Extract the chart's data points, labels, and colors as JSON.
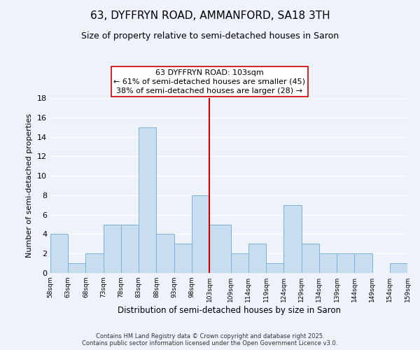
{
  "title": "63, DYFFRYN ROAD, AMMANFORD, SA18 3TH",
  "subtitle": "Size of property relative to semi-detached houses in Saron",
  "xlabel": "Distribution of semi-detached houses by size in Saron",
  "ylabel": "Number of semi-detached properties",
  "bin_edges": [
    58,
    63,
    68,
    73,
    78,
    83,
    88,
    93,
    98,
    103,
    109,
    114,
    119,
    124,
    129,
    134,
    139,
    144,
    149,
    154,
    159
  ],
  "counts": [
    4,
    1,
    2,
    5,
    5,
    15,
    4,
    3,
    8,
    5,
    2,
    3,
    1,
    7,
    3,
    2,
    2,
    2,
    0,
    1
  ],
  "bar_color": "#c9ddf0",
  "bar_edge_color": "#7ab4d8",
  "vline_x": 103,
  "vline_color": "#cc0000",
  "annotation_line1": "63 DYFFRYN ROAD: 103sqm",
  "annotation_line2": "← 61% of semi-detached houses are smaller (45)",
  "annotation_line3": "38% of semi-detached houses are larger (28) →",
  "annotation_fontsize": 8,
  "ylim": [
    0,
    18
  ],
  "yticks": [
    0,
    2,
    4,
    6,
    8,
    10,
    12,
    14,
    16,
    18
  ],
  "tick_labels": [
    "58sqm",
    "63sqm",
    "68sqm",
    "73sqm",
    "78sqm",
    "83sqm",
    "88sqm",
    "93sqm",
    "98sqm",
    "103sqm",
    "109sqm",
    "114sqm",
    "119sqm",
    "124sqm",
    "129sqm",
    "134sqm",
    "139sqm",
    "144sqm",
    "149sqm",
    "154sqm",
    "159sqm"
  ],
  "footer_text": "Contains HM Land Registry data © Crown copyright and database right 2025.\nContains public sector information licensed under the Open Government Licence v3.0.",
  "background_color": "#eef3fb",
  "grid_color": "#ffffff",
  "title_fontsize": 11,
  "subtitle_fontsize": 9,
  "xlabel_fontsize": 8.5,
  "ylabel_fontsize": 8
}
